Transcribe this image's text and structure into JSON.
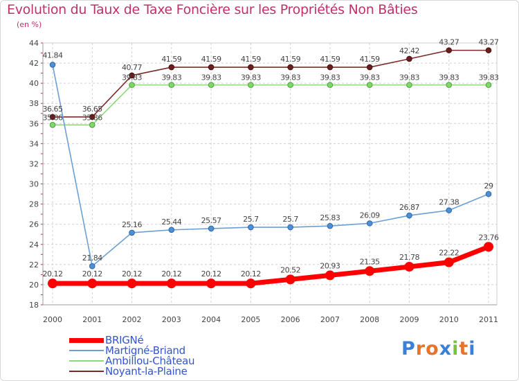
{
  "title": "Evolution du Taux de Taxe Foncière sur les Propriétés Non Bâties",
  "unit": "(en %)",
  "logo": {
    "letters": [
      "P",
      "r",
      "o",
      "x",
      "i",
      "t",
      "i"
    ],
    "colors": [
      "#3a7fd8",
      "#e8742a",
      "#e8742a",
      "#3a7fd8",
      "#7cc03c",
      "#e8742a",
      "#3a7fd8"
    ]
  },
  "chart_data": {
    "type": "line",
    "title": "Evolution du Taux de Taxe Foncière sur les Propriétés Non Bâties",
    "ylabel": "(en %)",
    "xlabel": "",
    "ylim": [
      18,
      44
    ],
    "yticks": [
      18,
      20,
      22,
      24,
      26,
      28,
      30,
      32,
      34,
      36,
      38,
      40,
      42,
      44
    ],
    "categories": [
      "2000",
      "2001",
      "2002",
      "2003",
      "2004",
      "2005",
      "2006",
      "2007",
      "2008",
      "2009",
      "2010",
      "2011"
    ],
    "grid": true,
    "series": [
      {
        "name": "Noyant-la-Plaine",
        "color": "#7a2a2a",
        "values": [
          36.65,
          36.65,
          40.77,
          41.59,
          41.59,
          41.59,
          41.59,
          41.59,
          41.59,
          42.42,
          43.27,
          43.27
        ],
        "labels": [
          "36.65",
          "36.65",
          "40.77",
          "41.59",
          "41.59",
          "41.59",
          "41.59",
          "41.59",
          "41.59",
          "42.42",
          "43.27",
          "43.27"
        ]
      },
      {
        "name": "Ambillou-Château",
        "color": "#7fd96a",
        "values": [
          35.86,
          35.86,
          39.83,
          39.83,
          39.83,
          39.83,
          39.83,
          39.83,
          39.83,
          39.83,
          39.83,
          39.83
        ],
        "labels": [
          "35.86",
          "35.86",
          "39.83",
          "39.83",
          "39.83",
          "39.83",
          "39.83",
          "39.83",
          "39.83",
          "39.83",
          "39.83",
          "39.83"
        ]
      },
      {
        "name": "Martigné-Briand",
        "color": "#6a9fd6",
        "values": [
          41.84,
          21.84,
          25.16,
          25.44,
          25.57,
          25.7,
          25.7,
          25.83,
          26.09,
          26.87,
          27.38,
          29
        ],
        "labels": [
          "41.84",
          "21.84",
          "25.16",
          "25.44",
          "25.57",
          "25.7",
          "25.7",
          "25.83",
          "26.09",
          "26.87",
          "27.38",
          "29"
        ]
      },
      {
        "name": "BRIGNé",
        "color": "#ff0000",
        "values": [
          20.12,
          20.12,
          20.12,
          20.12,
          20.12,
          20.12,
          20.52,
          20.93,
          21.35,
          21.78,
          22.22,
          23.76
        ],
        "labels": [
          "20.12",
          "20.12",
          "20.12",
          "20.12",
          "20.12",
          "20.12",
          "20.52",
          "20.93",
          "21.35",
          "21.78",
          "22.22",
          "23.76"
        ]
      }
    ],
    "legend": [
      "BRIGNé",
      "Martigné-Briand",
      "Ambillou-Château",
      "Noyant-la-Plaine"
    ],
    "legend_position": "bottom-left"
  }
}
